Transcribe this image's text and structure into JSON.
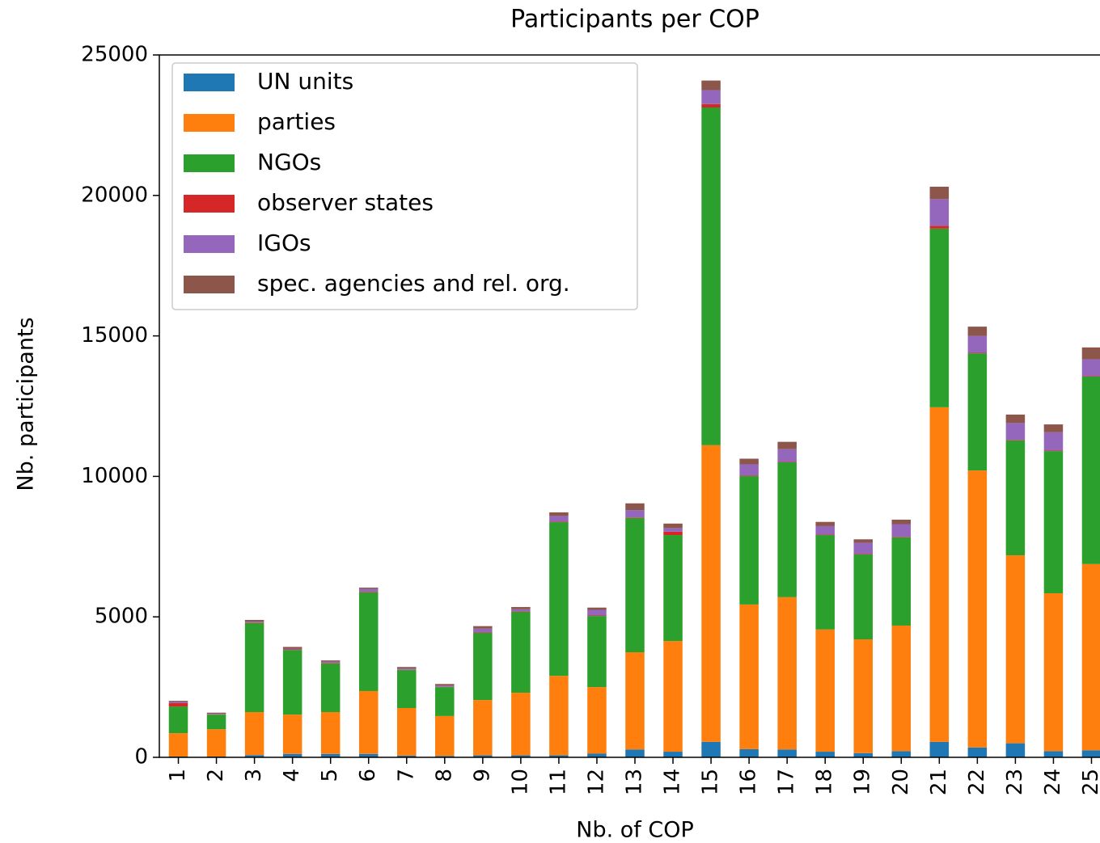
{
  "chart_data": {
    "type": "stacked_bar",
    "title": "Participants per COP",
    "xlabel": "Nb. of COP",
    "ylabel": "Nb. participants",
    "categories": [
      "1",
      "2",
      "3",
      "4",
      "5",
      "6",
      "7",
      "8",
      "9",
      "10",
      "11",
      "12",
      "13",
      "14",
      "15",
      "16",
      "17",
      "18",
      "19",
      "20",
      "21",
      "22",
      "23",
      "24",
      "25"
    ],
    "series": [
      {
        "name": "UN units",
        "color": "#1f77b4",
        "values": [
          30,
          30,
          80,
          120,
          120,
          120,
          60,
          50,
          70,
          70,
          70,
          130,
          280,
          200,
          550,
          290,
          280,
          200,
          150,
          220,
          550,
          350,
          500,
          220,
          250
        ]
      },
      {
        "name": "parties",
        "color": "#ff7f0e",
        "values": [
          830,
          970,
          1530,
          1400,
          1490,
          2240,
          1695,
          1420,
          1970,
          2230,
          2830,
          2370,
          3460,
          3940,
          10560,
          5150,
          5420,
          4350,
          4050,
          4470,
          11910,
          9860,
          6690,
          5620,
          6630
        ]
      },
      {
        "name": "NGOs",
        "color": "#2ca02c",
        "values": [
          950,
          520,
          3170,
          2300,
          1730,
          3510,
          1350,
          1030,
          2390,
          2880,
          5470,
          2530,
          4780,
          3770,
          12020,
          4570,
          4800,
          3360,
          3020,
          3140,
          6360,
          4170,
          4090,
          5060,
          6670
        ]
      },
      {
        "name": "observer states",
        "color": "#d62728",
        "values": [
          120,
          10,
          20,
          20,
          20,
          20,
          10,
          10,
          20,
          20,
          20,
          20,
          20,
          120,
          120,
          20,
          20,
          20,
          20,
          20,
          100,
          20,
          20,
          20,
          20
        ]
      },
      {
        "name": "IGOs",
        "color": "#9467bd",
        "values": [
          40,
          20,
          30,
          30,
          40,
          100,
          40,
          40,
          130,
          70,
          200,
          200,
          260,
          130,
          500,
          400,
          450,
          300,
          400,
          450,
          950,
          600,
          600,
          650,
          600
        ]
      },
      {
        "name": "spec. agencies and rel. org.",
        "color": "#8c564b",
        "values": [
          40,
          40,
          60,
          60,
          50,
          50,
          60,
          60,
          90,
          80,
          130,
          80,
          240,
          160,
          340,
          200,
          260,
          150,
          120,
          160,
          440,
          330,
          300,
          280,
          420
        ]
      }
    ],
    "ylim": [
      0,
      25000
    ],
    "yticks": [
      0,
      5000,
      10000,
      15000,
      20000,
      25000
    ],
    "legend": "upper left"
  }
}
